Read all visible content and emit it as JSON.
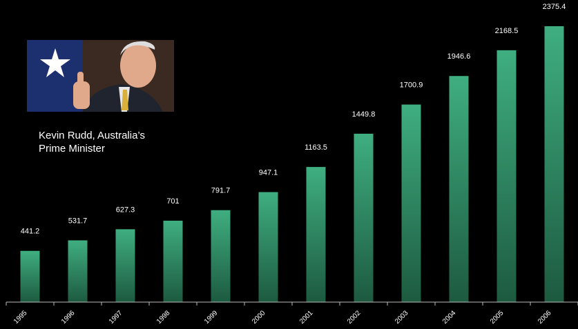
{
  "chart_data": {
    "type": "bar",
    "annotation": "Kevin Rudd, Australia’s Prime Minister",
    "categories": [
      "1995",
      "1996",
      "1997",
      "1998",
      "1999",
      "2000",
      "2001",
      "2002",
      "2003",
      "2004",
      "2005",
      "2006"
    ],
    "values": [
      441.2,
      531.7,
      627.3,
      701,
      791.7,
      947.1,
      1163.5,
      1449.8,
      1700.9,
      1946.6,
      2168.5,
      2375.4
    ],
    "color": "#3aa67a"
  }
}
